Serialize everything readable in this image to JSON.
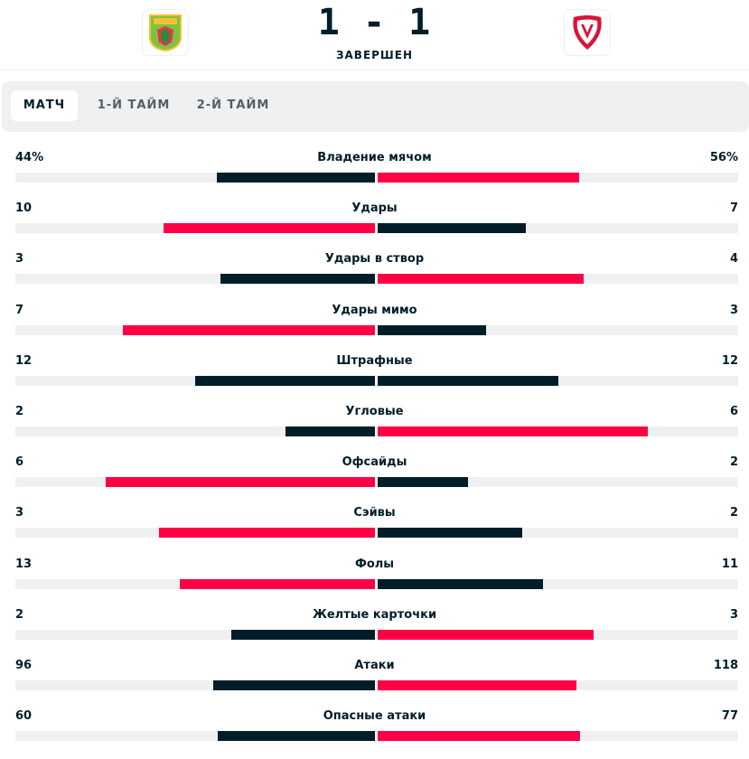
{
  "match": {
    "home_logo_icon": "neman-grodno-crest-icon",
    "away_logo_icon": "vitebsk-crest-icon",
    "score": "1 - 1",
    "status": "ЗАВЕРШЕН"
  },
  "tabs": [
    {
      "label": "МАТЧ",
      "active": true
    },
    {
      "label": "1-Й ТАЙМ",
      "active": false
    },
    {
      "label": "2-Й ТАЙМ",
      "active": false
    }
  ],
  "colors": {
    "winner_bar": "#ff0046",
    "loser_bar": "#001e28",
    "track": "#eef0f1"
  },
  "stats": [
    {
      "name": "Владение мячом",
      "home": "44%",
      "away": "56%",
      "home_val": 44,
      "away_val": 56
    },
    {
      "name": "Удары",
      "home": "10",
      "away": "7",
      "home_val": 10,
      "away_val": 7
    },
    {
      "name": "Удары в створ",
      "home": "3",
      "away": "4",
      "home_val": 3,
      "away_val": 4
    },
    {
      "name": "Удары мимо",
      "home": "7",
      "away": "3",
      "home_val": 7,
      "away_val": 3
    },
    {
      "name": "Штрафные",
      "home": "12",
      "away": "12",
      "home_val": 12,
      "away_val": 12
    },
    {
      "name": "Угловые",
      "home": "2",
      "away": "6",
      "home_val": 2,
      "away_val": 6
    },
    {
      "name": "Офсайды",
      "home": "6",
      "away": "2",
      "home_val": 6,
      "away_val": 2
    },
    {
      "name": "Сэйвы",
      "home": "3",
      "away": "2",
      "home_val": 3,
      "away_val": 2
    },
    {
      "name": "Фолы",
      "home": "13",
      "away": "11",
      "home_val": 13,
      "away_val": 11
    },
    {
      "name": "Желтые карточки",
      "home": "2",
      "away": "3",
      "home_val": 2,
      "away_val": 3
    },
    {
      "name": "Атаки",
      "home": "96",
      "away": "118",
      "home_val": 96,
      "away_val": 118
    },
    {
      "name": "Опасные атаки",
      "home": "60",
      "away": "77",
      "home_val": 60,
      "away_val": 77
    }
  ]
}
